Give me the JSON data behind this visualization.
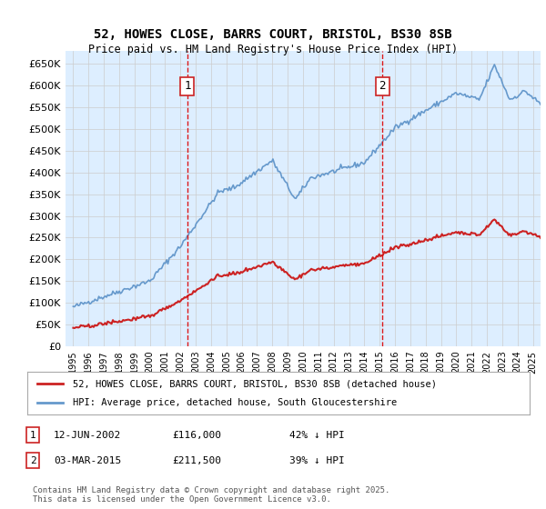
{
  "title1": "52, HOWES CLOSE, BARRS COURT, BRISTOL, BS30 8SB",
  "title2": "Price paid vs. HM Land Registry's House Price Index (HPI)",
  "sale1_date": "12-JUN-2002",
  "sale1_price": 116000,
  "sale1_label": "42% ↓ HPI",
  "sale2_date": "03-MAR-2015",
  "sale2_price": 211500,
  "sale2_label": "39% ↓ HPI",
  "legend1": "52, HOWES CLOSE, BARRS COURT, BRISTOL, BS30 8SB (detached house)",
  "legend2": "HPI: Average price, detached house, South Gloucestershire",
  "footer": "Contains HM Land Registry data © Crown copyright and database right 2025.\nThis data is licensed under the Open Government Licence v3.0.",
  "hpi_color": "#6699cc",
  "price_color": "#cc2222",
  "background_color": "#ddeeff",
  "sale_line_color": "#dd0000",
  "ylim": [
    0,
    680000
  ],
  "ytick_step": 50000,
  "xlabel_start": 1995,
  "xlabel_end": 2025
}
